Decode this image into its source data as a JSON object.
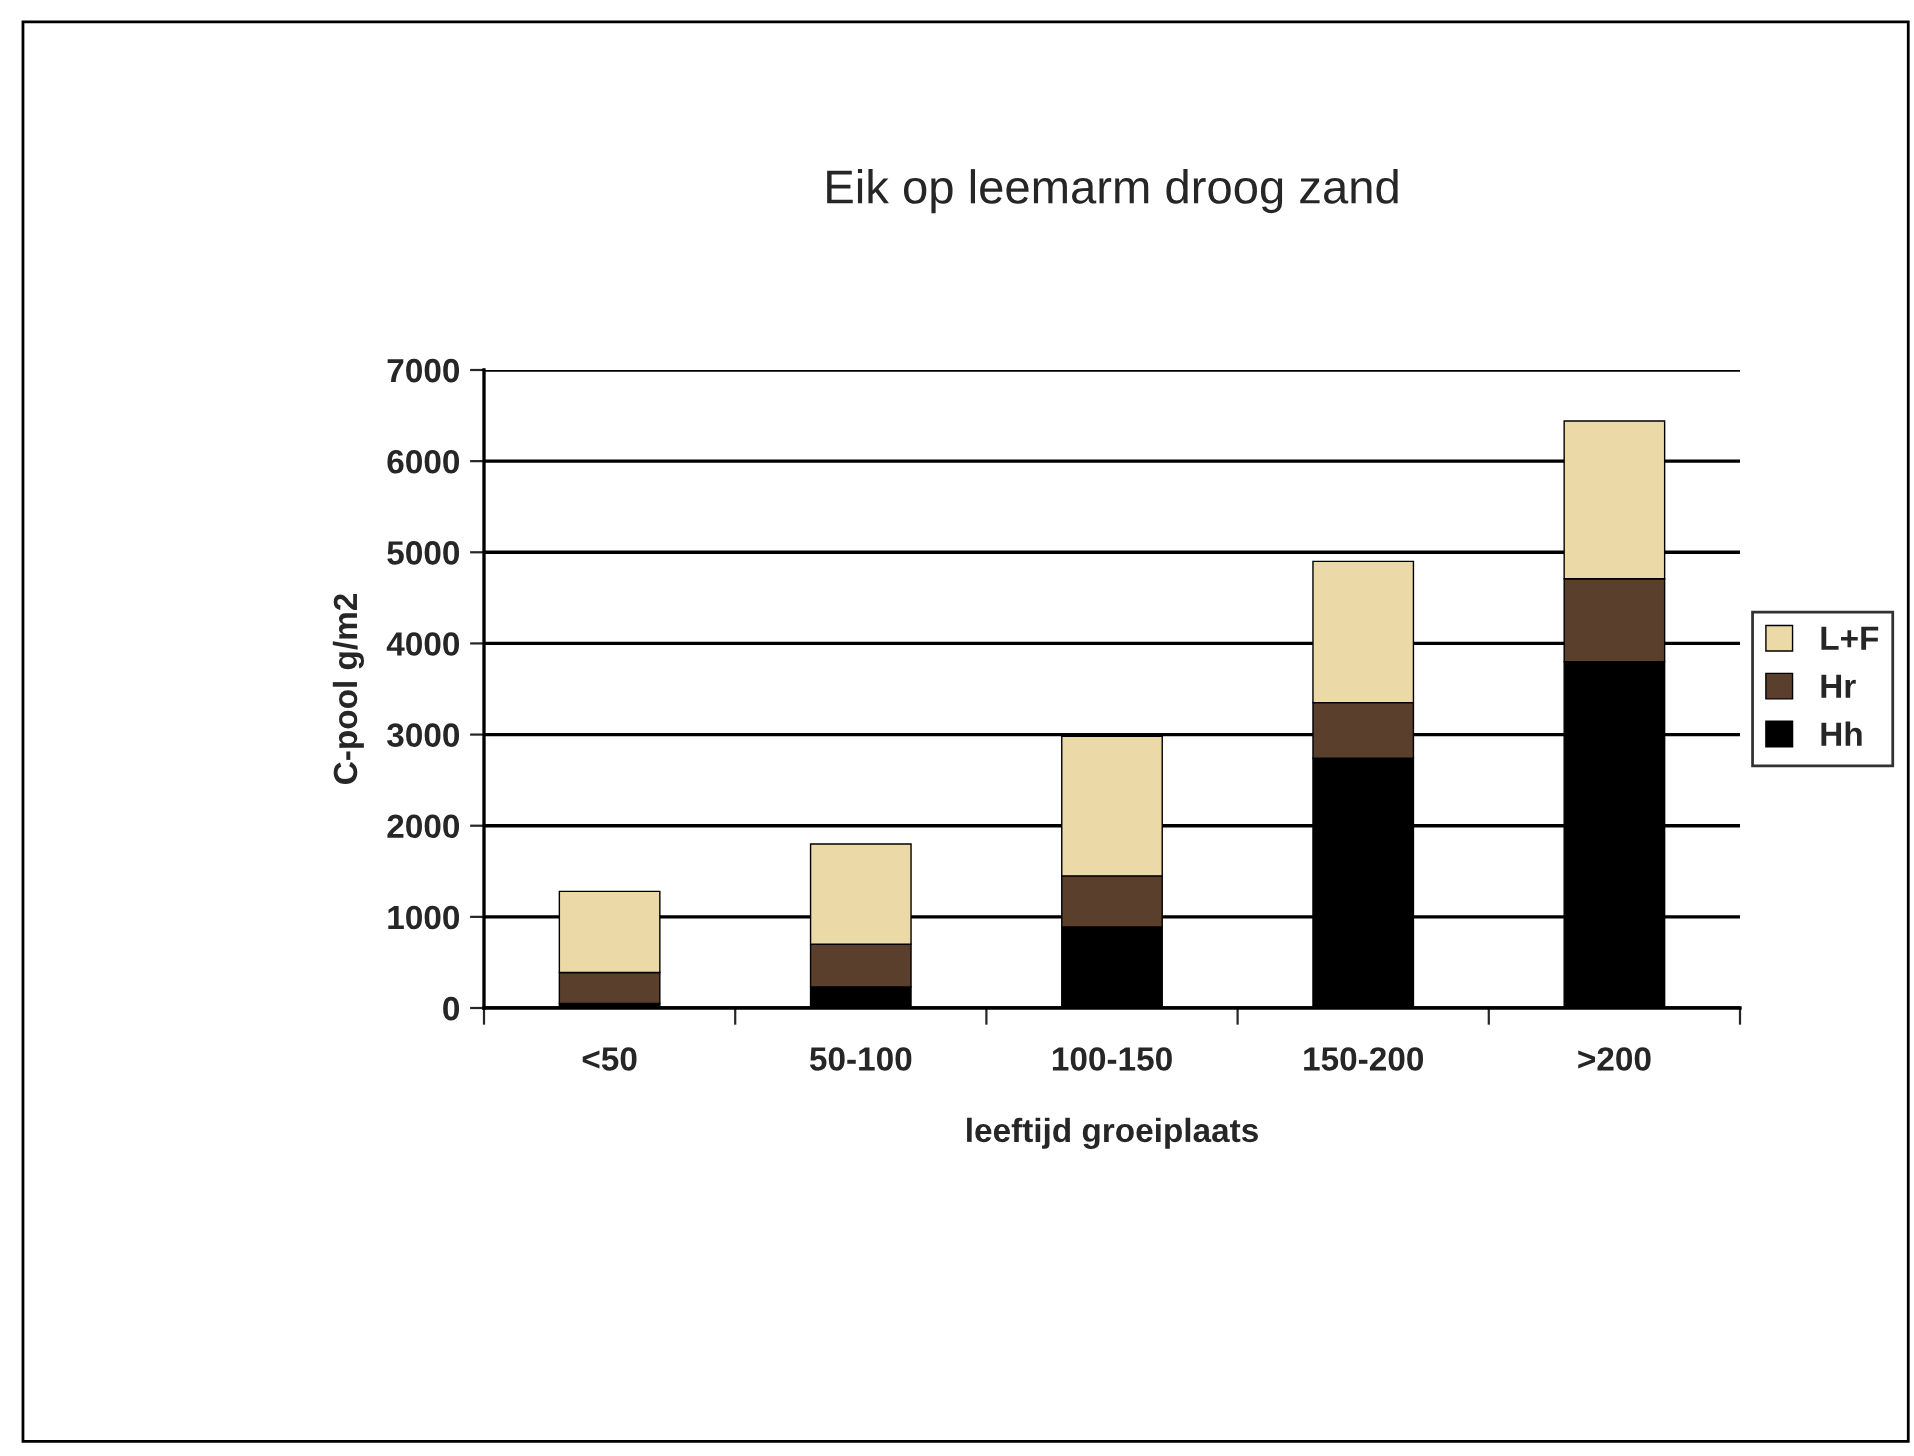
{
  "chart_data": {
    "type": "bar",
    "title": "Eik op leemarm droog zand",
    "xlabel": "leeftijd groeiplaats",
    "ylabel": "C-pool g/m2",
    "categories": [
      "<50",
      "50-100",
      "100-150",
      "150-200",
      ">200"
    ],
    "stacked": true,
    "series": [
      {
        "name": "Hh",
        "color": "#000000",
        "values": [
          50,
          230,
          890,
          2740,
          3800
        ]
      },
      {
        "name": "Hr",
        "color": "#5a3f2c",
        "values": [
          340,
          470,
          560,
          610,
          910
        ]
      },
      {
        "name": "L+F",
        "color": "#ecd9a8",
        "values": [
          890,
          1100,
          1530,
          1550,
          1730
        ]
      }
    ],
    "ylim": [
      0,
      7000
    ],
    "yticks": [
      0,
      1000,
      2000,
      3000,
      4000,
      5000,
      6000,
      7000
    ],
    "grid": "y",
    "legend": "right"
  }
}
